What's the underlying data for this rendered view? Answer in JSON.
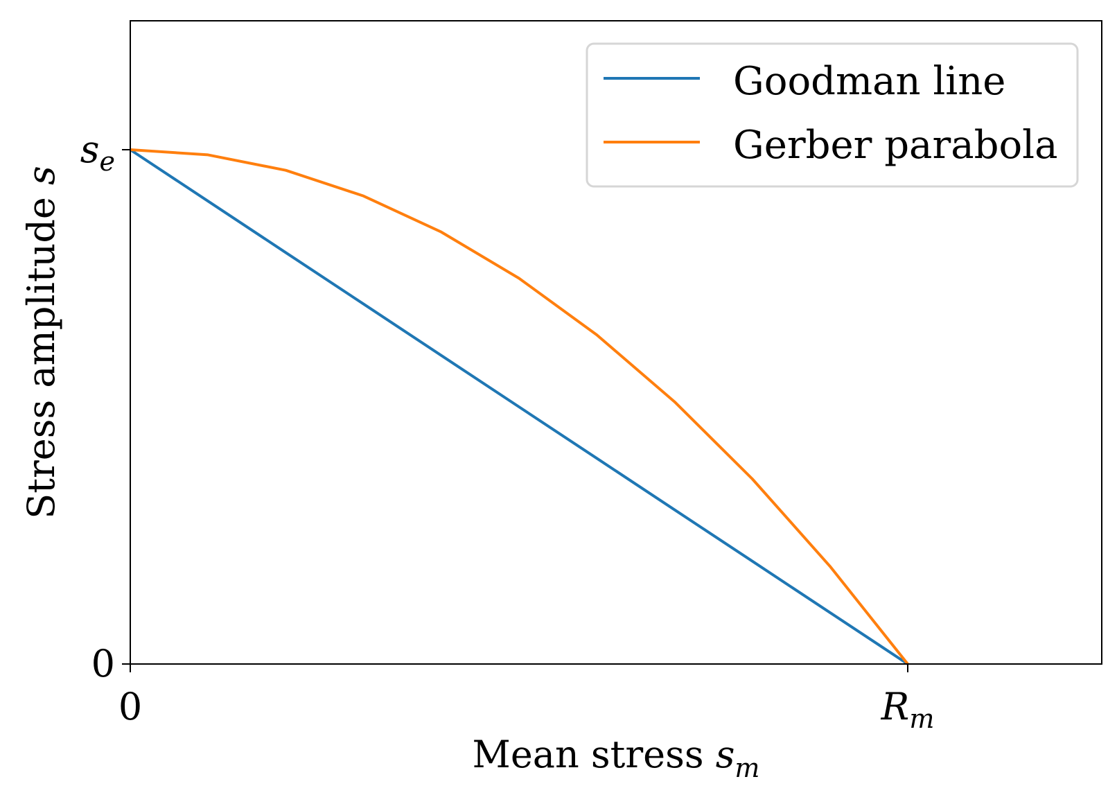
{
  "chart_data": {
    "type": "line",
    "title": "",
    "xlabel": {
      "text": "Mean stress ",
      "var": "s",
      "sub": "m"
    },
    "ylabel": {
      "text": "Stress amplitude ",
      "var": "s"
    },
    "xlim": [
      0,
      1.25
    ],
    "ylim": [
      0,
      1.25
    ],
    "x_ticks": [
      {
        "value": 0,
        "label": "0",
        "sub": ""
      },
      {
        "value": 1,
        "label": "R",
        "sub": "m"
      }
    ],
    "y_ticks": [
      {
        "value": 0,
        "label": "0",
        "sub": ""
      },
      {
        "value": 1,
        "label": "s",
        "sub": "e"
      }
    ],
    "series": [
      {
        "name": "Goodman line",
        "color": "#1f77b4",
        "x": [
          0,
          0.1,
          0.2,
          0.3,
          0.4,
          0.5,
          0.6,
          0.7,
          0.8,
          0.9,
          1.0
        ],
        "y": [
          1.0,
          0.9,
          0.8,
          0.7,
          0.6,
          0.5,
          0.4,
          0.3,
          0.2,
          0.1,
          0.0
        ]
      },
      {
        "name": "Gerber parabola",
        "color": "#ff7f0e",
        "x": [
          0,
          0.1,
          0.2,
          0.3,
          0.4,
          0.5,
          0.6,
          0.7,
          0.8,
          0.9,
          1.0
        ],
        "y": [
          1.0,
          0.99,
          0.96,
          0.91,
          0.84,
          0.75,
          0.64,
          0.51,
          0.36,
          0.19,
          0.0
        ]
      }
    ],
    "grid": false,
    "legend": "upper right"
  }
}
